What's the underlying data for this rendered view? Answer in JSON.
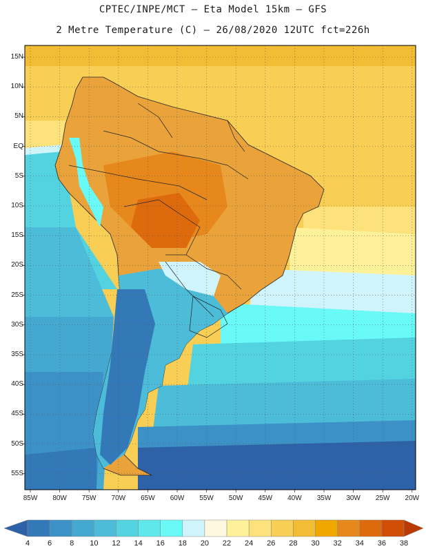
{
  "header": {
    "line1": "CPTEC/INPE/MCT –  Eta Model 15km – GFS",
    "line2": "2 Metre Temperature (C) – 26/08/2020 12UTC fct=226h"
  },
  "map": {
    "lat_labels": [
      "15N",
      "10N",
      "5N",
      "EQ",
      "5S",
      "10S",
      "15S",
      "20S",
      "25S",
      "30S",
      "35S",
      "40S",
      "45S",
      "50S",
      "55S"
    ],
    "lon_labels": [
      "85W",
      "80W",
      "75W",
      "70W",
      "65W",
      "60W",
      "55W",
      "50W",
      "45W",
      "40W",
      "35W",
      "30W",
      "25W",
      "20W"
    ]
  },
  "colorbar": {
    "labels": [
      "4",
      "6",
      "8",
      "10",
      "12",
      "14",
      "16",
      "18",
      "20",
      "22",
      "24",
      "26",
      "28",
      "30",
      "32",
      "34",
      "36",
      "38"
    ],
    "colors": [
      "#2e62a8",
      "#3479b7",
      "#3c92c6",
      "#45a8d0",
      "#4dbcd8",
      "#53d2e0",
      "#5ee8ec",
      "#69faf8",
      "#cff4fc",
      "#fff8e0",
      "#fff19a",
      "#fde17a",
      "#f8ce55",
      "#f2bc35",
      "#f0a800",
      "#e6881c",
      "#dd6a0c",
      "#d04e05",
      "#bb3a02"
    ]
  }
}
